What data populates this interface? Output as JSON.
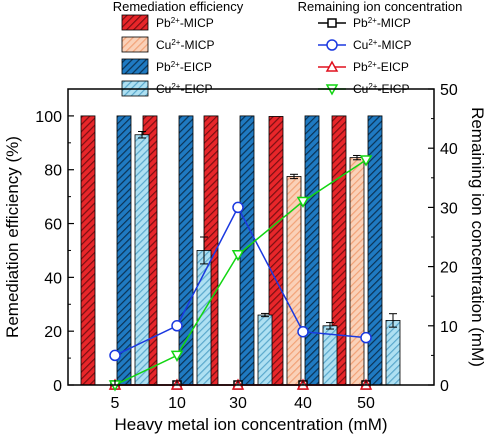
{
  "chart_data": {
    "type": "bar",
    "categories": [
      "5",
      "10",
      "30",
      "40",
      "50"
    ],
    "xlabel": "Heavy metal ion concentration (mM)",
    "ylabel": "Remediation efficiency (%)",
    "y2label": "Remaining ion concentration (mM)",
    "ylim": [
      0,
      110
    ],
    "y2lim": [
      0,
      50
    ],
    "yticks": [
      "0",
      "20",
      "40",
      "60",
      "80",
      "100"
    ],
    "y2ticks": [
      "0",
      "10",
      "20",
      "30",
      "40",
      "50"
    ],
    "legend_left_title": "Remediation efficiency",
    "legend_right_title": "Remaining ion concentration",
    "bar_series": [
      {
        "name_base": "Pb",
        "name_sup": "2+",
        "name_suffix": "-MICP",
        "color": "#e8262a",
        "hatch": "#7a0f12",
        "values": [
          100,
          100,
          100,
          99.8,
          100
        ],
        "errors": [
          0,
          0,
          0,
          0,
          0
        ]
      },
      {
        "name_base": "Cu",
        "name_sup": "2+",
        "name_suffix": "-MICP",
        "color": "#fad1b8",
        "hatch": "#f2a277",
        "values": [
          0,
          0,
          0,
          77.5,
          84.5
        ],
        "errors": [
          0,
          0,
          0,
          0.8,
          0.8
        ]
      },
      {
        "name_base": "Pb",
        "name_sup": "2+",
        "name_suffix": "-EICP",
        "color": "#1f7ac2",
        "hatch": "#0b3355",
        "values": [
          100,
          100,
          100,
          100,
          100
        ],
        "errors": [
          0,
          0,
          0,
          0,
          0
        ]
      },
      {
        "name_base": "Cu",
        "name_sup": "2+",
        "name_suffix": "-EICP",
        "color": "#aee0f2",
        "hatch": "#5aa8cc",
        "values": [
          93,
          50,
          26,
          22,
          24
        ],
        "errors": [
          1.2,
          5,
          0.6,
          1.2,
          2.5
        ]
      }
    ],
    "line_series": [
      {
        "name_base": "Pb",
        "name_sup": "2+",
        "name_suffix": "-MICP",
        "color": "#000000",
        "marker": "square",
        "values": [
          0,
          0,
          0,
          0,
          0
        ]
      },
      {
        "name_base": "Cu",
        "name_sup": "2+",
        "name_suffix": "-MICP",
        "color": "#1b39e0",
        "marker": "circle",
        "values": [
          5,
          10,
          30,
          9,
          8
        ]
      },
      {
        "name_base": "Pb",
        "name_sup": "2+",
        "name_suffix": "-EICP",
        "color": "#e0101e",
        "marker": "triangle-up",
        "values": [
          0,
          0,
          0,
          0,
          0
        ]
      },
      {
        "name_base": "Cu",
        "name_sup": "2+",
        "name_suffix": "-EICP",
        "color": "#12d612",
        "marker": "triangle-down",
        "values": [
          0,
          5,
          22,
          31,
          38
        ]
      }
    ]
  }
}
